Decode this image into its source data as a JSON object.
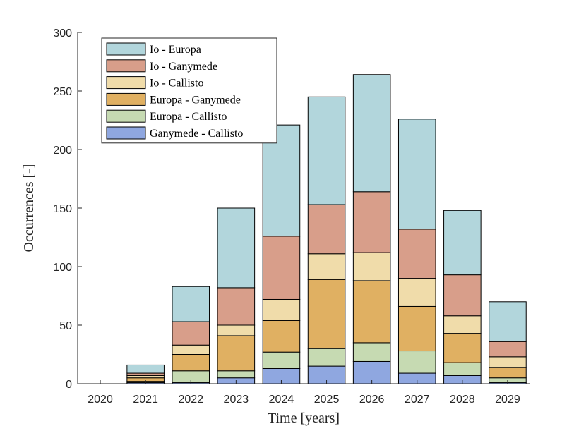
{
  "chart_data": {
    "type": "bar",
    "stacked": true,
    "title": "",
    "xlabel": "Time [years]",
    "ylabel": "Occurrences [-]",
    "ylim": [
      0,
      300
    ],
    "yticks": [
      0,
      50,
      100,
      150,
      200,
      250,
      300
    ],
    "categories": [
      "2020",
      "2021",
      "2022",
      "2023",
      "2024",
      "2025",
      "2026",
      "2027",
      "2028",
      "2029"
    ],
    "legend_position": "top-left",
    "series": [
      {
        "name": "Ganymede - Callisto",
        "color": "#8fa7e0",
        "values": [
          0,
          1,
          1,
          5,
          13,
          15,
          19,
          9,
          7,
          1
        ]
      },
      {
        "name": "Europa - Callisto",
        "color": "#c6dab2",
        "values": [
          0,
          1,
          10,
          6,
          14,
          15,
          16,
          19,
          11,
          4
        ]
      },
      {
        "name": "Europa - Ganymede",
        "color": "#e0b062",
        "values": [
          0,
          3,
          14,
          30,
          27,
          59,
          53,
          38,
          25,
          9
        ]
      },
      {
        "name": "Io - Callisto",
        "color": "#f0dcaa",
        "values": [
          0,
          2,
          8,
          9,
          18,
          22,
          24,
          24,
          15,
          9
        ]
      },
      {
        "name": "Io - Ganymede",
        "color": "#d89e8a",
        "values": [
          0,
          2,
          20,
          32,
          54,
          42,
          52,
          42,
          35,
          13
        ]
      },
      {
        "name": "Io - Europa",
        "color": "#b2d6dc",
        "values": [
          0,
          7,
          30,
          68,
          95,
          92,
          100,
          94,
          55,
          34
        ]
      }
    ],
    "legend_order": [
      "Io - Europa",
      "Io - Ganymede",
      "Io - Callisto",
      "Europa - Ganymede",
      "Europa - Callisto",
      "Ganymede - Callisto"
    ]
  }
}
